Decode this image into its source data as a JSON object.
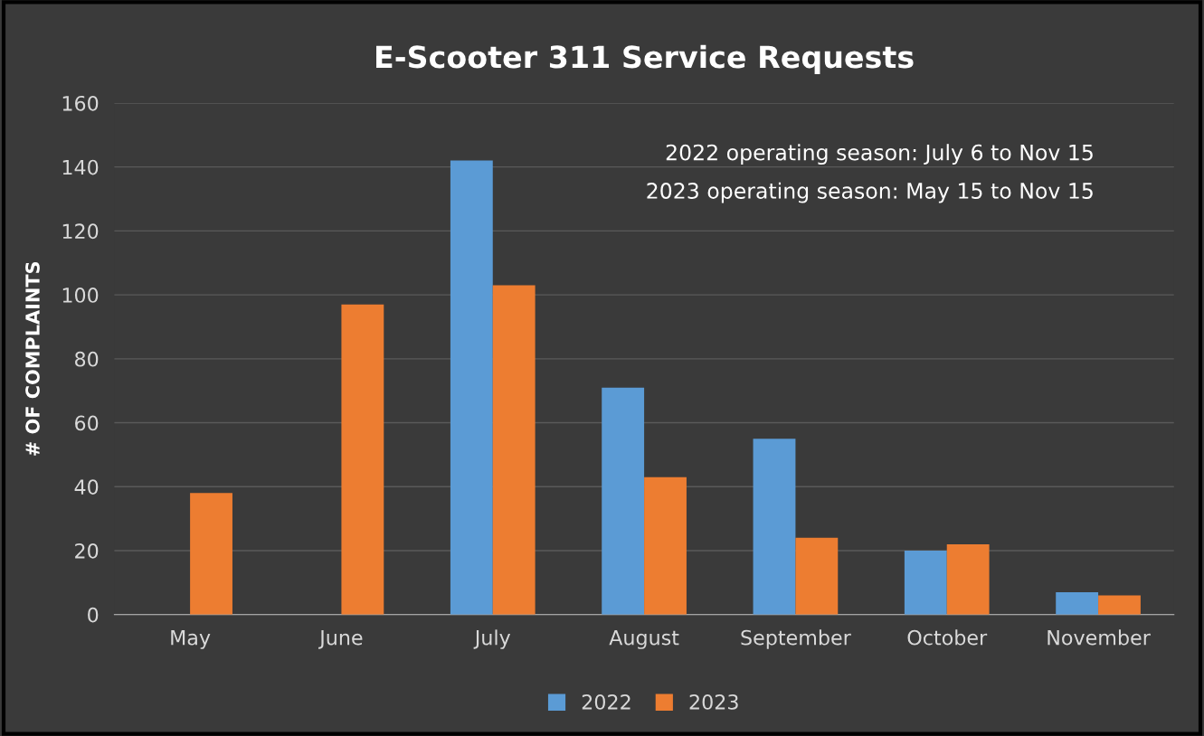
{
  "chart_data": {
    "type": "bar",
    "title": "E-Scooter 311 Service Requests",
    "ylabel": "# OF COMPLAINTS",
    "categories": [
      "May",
      "June",
      "July",
      "August",
      "September",
      "October",
      "November"
    ],
    "series": [
      {
        "name": "2022",
        "color": "#5b9bd5",
        "values": [
          null,
          null,
          142,
          71,
          55,
          20,
          7
        ]
      },
      {
        "name": "2023",
        "color": "#ed7d31",
        "values": [
          38,
          97,
          103,
          43,
          24,
          22,
          6
        ]
      }
    ],
    "ylim": [
      0,
      160
    ],
    "yticks": [
      0,
      20,
      40,
      60,
      80,
      100,
      120,
      140,
      160
    ],
    "grid": "y",
    "legend": "bottom",
    "annotations": [
      "2022 operating season: July 6 to Nov 15",
      "2023 operating season: May 15 to Nov 15"
    ]
  }
}
